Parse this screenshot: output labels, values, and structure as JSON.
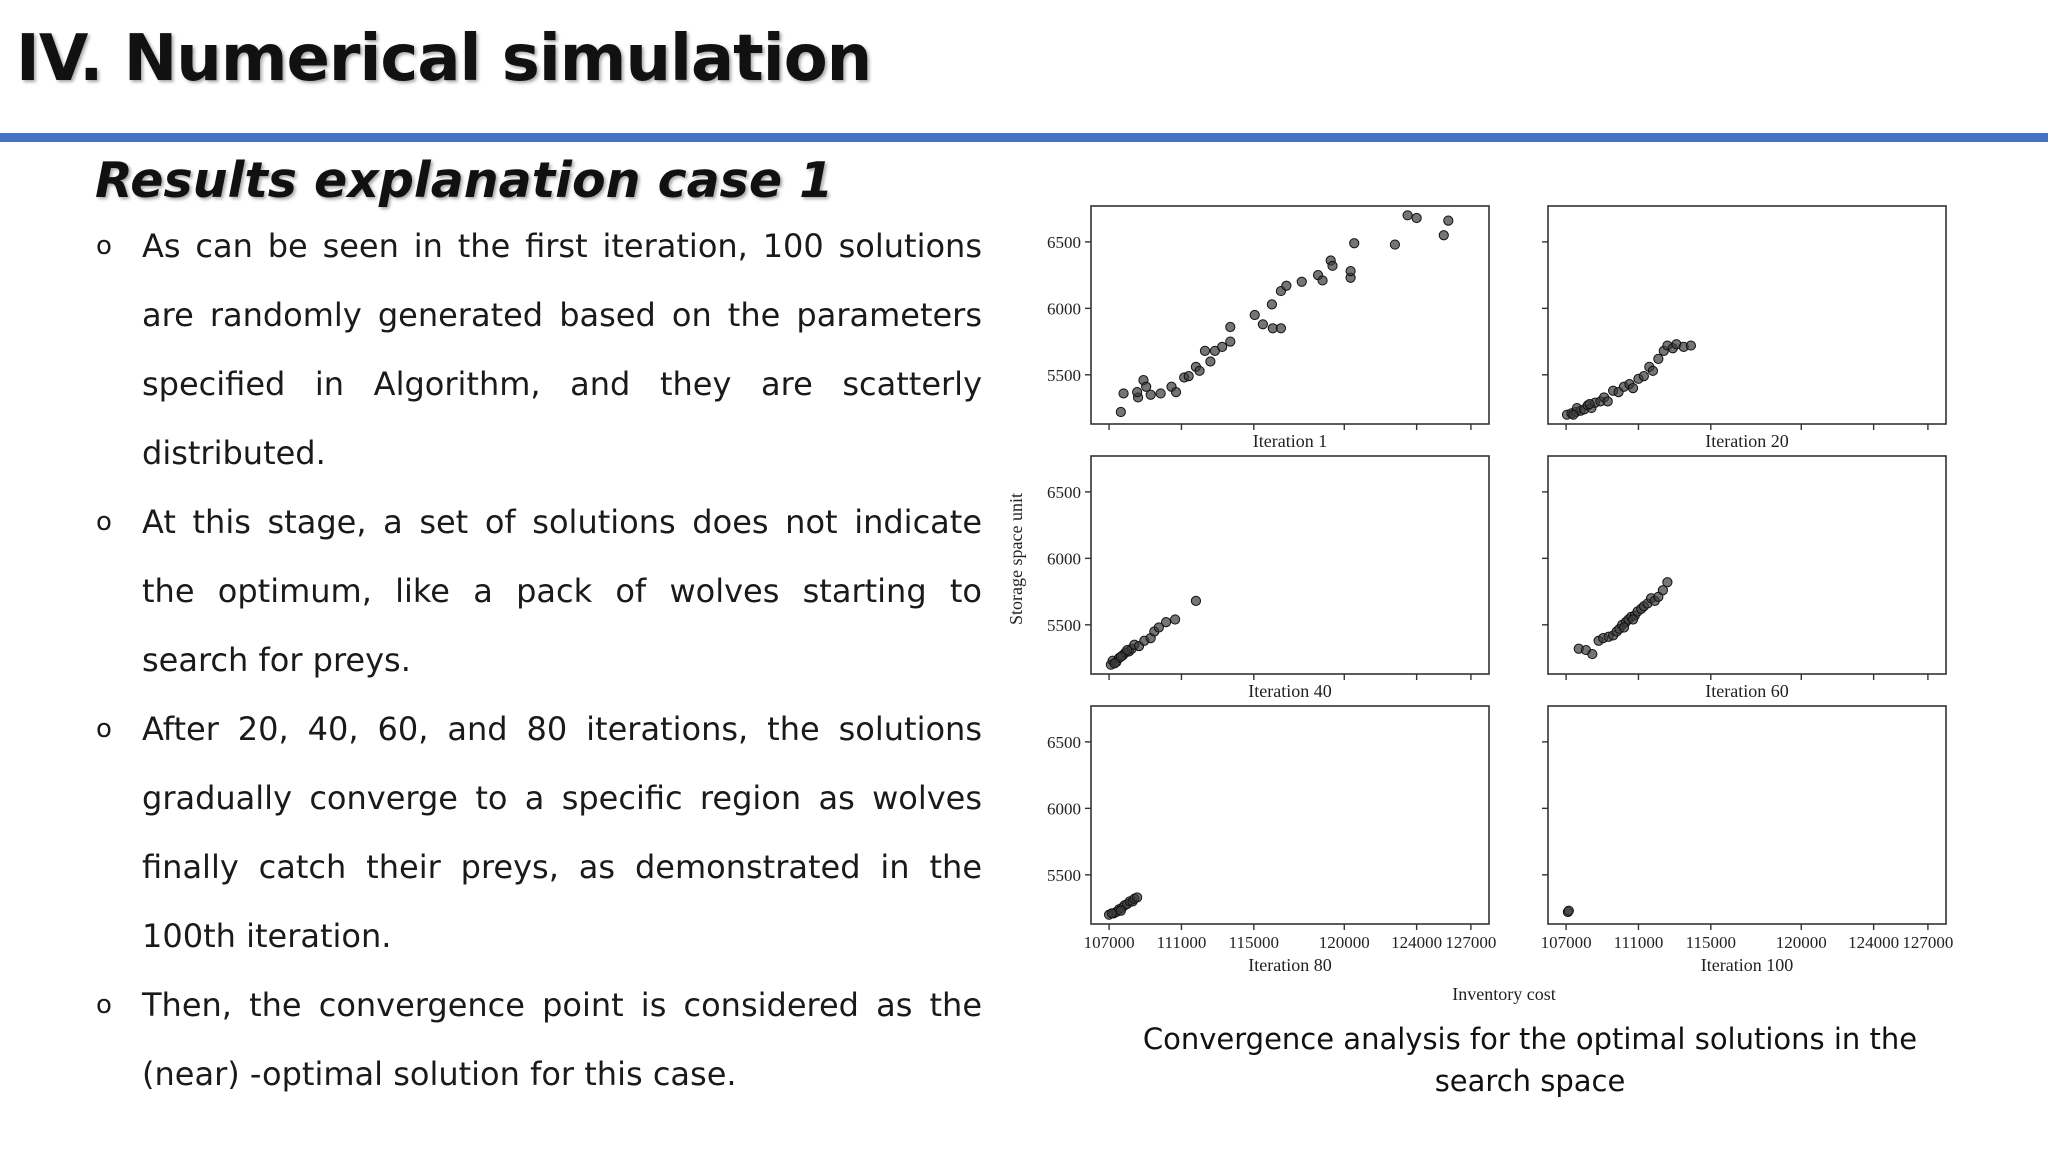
{
  "slide": {
    "title": "IV. Numerical simulation",
    "subtitle": "Results explanation case 1",
    "accent_color": "#4472c4",
    "bullet_marker": "o",
    "bullets": [
      "As can be seen in the first iteration, 100 solutions are randomly generated based on the parameters specified in Algorithm, and they are scatterly distributed.",
      "At this stage, a set of solutions does not indicate the optimum, like a pack of wolves starting to search for preys.",
      "After 20, 40, 60, and 80 iterations, the solutions gradually converge to a specific region as wolves finally catch their preys, as demonstrated in the 100th iteration.",
      "Then, the convergence point is considered as the (near) -optimal solution for this case."
    ],
    "caption": "Convergence analysis for the optimal solutions in the search space"
  },
  "chart_data": {
    "type": "scatter",
    "xlabel": "Inventory cost",
    "ylabel": "Storage space unit",
    "x_ticks": [
      107000,
      111000,
      115000,
      120000,
      124000,
      127000
    ],
    "y_ticks": [
      5500,
      6000,
      6500
    ],
    "xlim": [
      106000,
      128000
    ],
    "ylim": [
      5130,
      6770
    ],
    "marker_color": "#3a3a3a",
    "panels": [
      {
        "label": "Iteration 1",
        "points": [
          [
            107650,
            5220
          ],
          [
            107800,
            5360
          ],
          [
            108600,
            5330
          ],
          [
            108550,
            5370
          ],
          [
            108900,
            5460
          ],
          [
            109050,
            5410
          ],
          [
            109300,
            5350
          ],
          [
            109850,
            5360
          ],
          [
            110450,
            5410
          ],
          [
            110700,
            5370
          ],
          [
            111150,
            5480
          ],
          [
            111400,
            5490
          ],
          [
            111800,
            5560
          ],
          [
            112000,
            5530
          ],
          [
            112300,
            5680
          ],
          [
            112600,
            5600
          ],
          [
            112850,
            5680
          ],
          [
            113250,
            5710
          ],
          [
            113700,
            5860
          ],
          [
            113700,
            5750
          ],
          [
            115050,
            5950
          ],
          [
            115500,
            5880
          ],
          [
            116050,
            5850
          ],
          [
            116000,
            6030
          ],
          [
            116500,
            5850
          ],
          [
            116500,
            6130
          ],
          [
            116800,
            6170
          ],
          [
            117650,
            6200
          ],
          [
            118550,
            6250
          ],
          [
            118800,
            6210
          ],
          [
            119250,
            6360
          ],
          [
            119350,
            6320
          ],
          [
            120350,
            6230
          ],
          [
            120350,
            6280
          ],
          [
            120550,
            6490
          ],
          [
            122800,
            6480
          ],
          [
            123500,
            6700
          ],
          [
            124000,
            6680
          ],
          [
            125500,
            6550
          ],
          [
            125750,
            6660
          ]
        ]
      },
      {
        "label": "Iteration 20",
        "points": [
          [
            107050,
            5200
          ],
          [
            107300,
            5210
          ],
          [
            107550,
            5220
          ],
          [
            107800,
            5230
          ],
          [
            107600,
            5250
          ],
          [
            108000,
            5240
          ],
          [
            108200,
            5270
          ],
          [
            108400,
            5250
          ],
          [
            108600,
            5290
          ],
          [
            108900,
            5300
          ],
          [
            109100,
            5330
          ],
          [
            109300,
            5300
          ],
          [
            109600,
            5380
          ],
          [
            109900,
            5370
          ],
          [
            110200,
            5410
          ],
          [
            110500,
            5430
          ],
          [
            110700,
            5400
          ],
          [
            111000,
            5470
          ],
          [
            111300,
            5490
          ],
          [
            111600,
            5560
          ],
          [
            111800,
            5530
          ],
          [
            112100,
            5620
          ],
          [
            112400,
            5680
          ],
          [
            112600,
            5720
          ],
          [
            112900,
            5700
          ],
          [
            113100,
            5730
          ],
          [
            113500,
            5710
          ],
          [
            113900,
            5720
          ],
          [
            107400,
            5200
          ],
          [
            108300,
            5280
          ]
        ]
      },
      {
        "label": "Iteration 40",
        "points": [
          [
            107100,
            5200
          ],
          [
            107200,
            5230
          ],
          [
            107400,
            5220
          ],
          [
            107550,
            5250
          ],
          [
            107750,
            5270
          ],
          [
            107900,
            5290
          ],
          [
            108100,
            5300
          ],
          [
            108250,
            5320
          ],
          [
            108400,
            5350
          ],
          [
            108650,
            5340
          ],
          [
            108950,
            5380
          ],
          [
            109300,
            5400
          ],
          [
            109500,
            5450
          ],
          [
            109750,
            5480
          ],
          [
            110150,
            5520
          ],
          [
            110650,
            5540
          ],
          [
            111800,
            5680
          ],
          [
            107300,
            5210
          ],
          [
            107650,
            5260
          ],
          [
            108000,
            5310
          ]
        ]
      },
      {
        "label": "Iteration 60",
        "points": [
          [
            107700,
            5320
          ],
          [
            108100,
            5310
          ],
          [
            108450,
            5280
          ],
          [
            108800,
            5380
          ],
          [
            109050,
            5400
          ],
          [
            109350,
            5410
          ],
          [
            109600,
            5420
          ],
          [
            109800,
            5450
          ],
          [
            109950,
            5470
          ],
          [
            110100,
            5500
          ],
          [
            110300,
            5520
          ],
          [
            110450,
            5540
          ],
          [
            110600,
            5560
          ],
          [
            110800,
            5570
          ],
          [
            110950,
            5600
          ],
          [
            111150,
            5620
          ],
          [
            111300,
            5640
          ],
          [
            111500,
            5660
          ],
          [
            111700,
            5700
          ],
          [
            111900,
            5680
          ],
          [
            112100,
            5710
          ],
          [
            112350,
            5760
          ],
          [
            112600,
            5820
          ],
          [
            110200,
            5480
          ],
          [
            110700,
            5540
          ]
        ]
      },
      {
        "label": "Iteration 80",
        "points": [
          [
            107000,
            5200
          ],
          [
            107250,
            5210
          ],
          [
            107400,
            5220
          ],
          [
            107550,
            5240
          ],
          [
            107700,
            5250
          ],
          [
            107850,
            5270
          ],
          [
            108000,
            5280
          ],
          [
            108150,
            5300
          ],
          [
            108300,
            5300
          ],
          [
            108400,
            5320
          ],
          [
            108550,
            5330
          ],
          [
            107150,
            5210
          ],
          [
            107650,
            5230
          ]
        ]
      },
      {
        "label": "Iteration 100",
        "points": [
          [
            107100,
            5220
          ],
          [
            107150,
            5230
          ]
        ]
      }
    ]
  }
}
